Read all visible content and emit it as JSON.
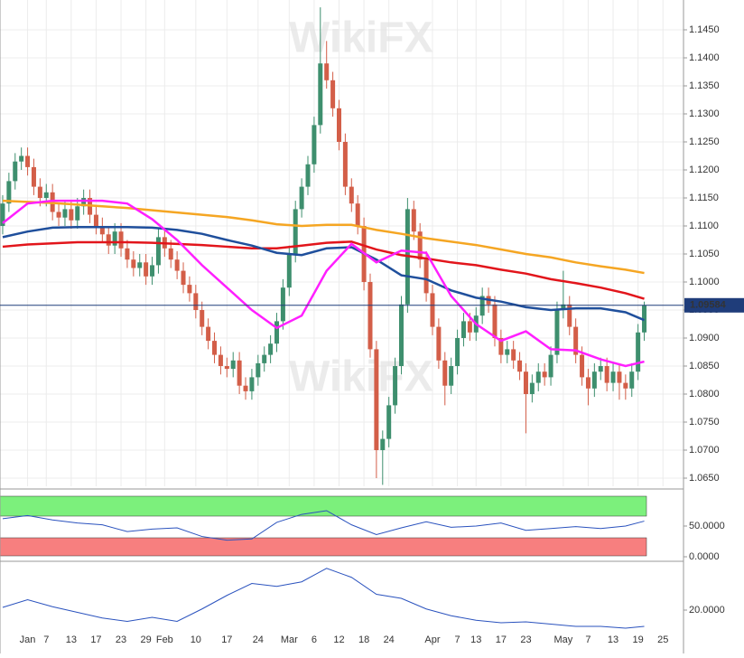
{
  "watermark": "WikiFX",
  "chart_data": [
    {
      "type": "candlestick",
      "grid": true,
      "up_color": "#3e8f6e",
      "down_color": "#d35e48",
      "xlim": [
        -0.43,
        109.3
      ],
      "ylim": [
        1.06355,
        1.15032
      ],
      "yticks": [
        {
          "value": 1.065,
          "label": "1.0650"
        },
        {
          "value": 1.07,
          "label": "1.0700"
        },
        {
          "value": 1.075,
          "label": "1.0750"
        },
        {
          "value": 1.08,
          "label": "1.0800"
        },
        {
          "value": 1.085,
          "label": "1.0850"
        },
        {
          "value": 1.09,
          "label": "1.0900"
        },
        {
          "value": 1.095,
          "label": "1.0950"
        },
        {
          "value": 1.1,
          "label": "1.1000"
        },
        {
          "value": 1.105,
          "label": "1.1050"
        },
        {
          "value": 1.11,
          "label": "1.1100"
        },
        {
          "value": 1.115,
          "label": "1.1150"
        },
        {
          "value": 1.12,
          "label": "1.1200"
        },
        {
          "value": 1.125,
          "label": "1.1250"
        },
        {
          "value": 1.13,
          "label": "1.1300"
        },
        {
          "value": 1.135,
          "label": "1.1350"
        },
        {
          "value": 1.14,
          "label": "1.1400"
        },
        {
          "value": 1.145,
          "label": "1.1450"
        }
      ],
      "last_price": {
        "value": 1.09584,
        "label": "1.09584"
      },
      "open": [
        1.11,
        1.114,
        1.118,
        1.1215,
        1.1225,
        1.1205,
        1.117,
        1.115,
        1.116,
        1.1125,
        1.1115,
        1.113,
        1.111,
        1.1135,
        1.115,
        1.112,
        1.11,
        1.1085,
        1.1065,
        1.109,
        1.106,
        1.104,
        1.1025,
        1.1035,
        1.101,
        1.103,
        1.108,
        1.106,
        1.104,
        1.102,
        1.0995,
        1.098,
        1.095,
        1.092,
        1.0895,
        1.087,
        1.085,
        1.0845,
        1.086,
        1.0815,
        1.0805,
        1.083,
        1.0855,
        1.087,
        1.089,
        1.093,
        1.099,
        1.105,
        1.113,
        1.117,
        1.121,
        1.128,
        1.139,
        1.136,
        1.131,
        1.125,
        1.117,
        1.114,
        1.11,
        1.1,
        1.088,
        1.07,
        1.072,
        1.078,
        1.085,
        1.096,
        1.113,
        1.109,
        1.104,
        1.098,
        1.092,
        1.086,
        1.0815,
        1.085,
        1.09,
        1.093,
        1.091,
        1.094,
        1.0975,
        1.096,
        1.09,
        1.087,
        1.088,
        1.086,
        1.084,
        1.08,
        1.082,
        1.084,
        1.083,
        1.087,
        1.095,
        1.096,
        1.092,
        1.087,
        1.083,
        1.081,
        1.084,
        1.085,
        1.082,
        1.084,
        1.082,
        1.081,
        1.084,
        1.091
      ],
      "high": [
        1.1155,
        1.1195,
        1.123,
        1.124,
        1.124,
        1.122,
        1.1185,
        1.1175,
        1.1175,
        1.114,
        1.1145,
        1.1145,
        1.115,
        1.1165,
        1.1165,
        1.1135,
        1.1115,
        1.11,
        1.1105,
        1.1105,
        1.1075,
        1.1055,
        1.105,
        1.105,
        1.1045,
        1.1095,
        1.1095,
        1.1075,
        1.1055,
        1.1035,
        1.101,
        1.0995,
        1.0965,
        1.0935,
        1.091,
        1.0885,
        1.0865,
        1.0875,
        1.0875,
        1.083,
        1.0845,
        1.087,
        1.0885,
        1.0905,
        1.0945,
        1.1005,
        1.1065,
        1.1145,
        1.1185,
        1.1225,
        1.1295,
        1.149,
        1.143,
        1.1375,
        1.1325,
        1.1265,
        1.1185,
        1.1155,
        1.1115,
        1.1015,
        1.0895,
        1.0735,
        1.0795,
        1.0865,
        1.0975,
        1.115,
        1.1145,
        1.1105,
        1.1055,
        1.0995,
        1.0935,
        1.0875,
        1.0865,
        1.0915,
        1.0945,
        1.0945,
        1.0955,
        1.099,
        1.099,
        1.0975,
        1.0915,
        1.0895,
        1.0895,
        1.0875,
        1.0855,
        1.0835,
        1.0855,
        1.0855,
        1.0885,
        1.0965,
        1.102,
        1.0975,
        1.0935,
        1.0885,
        1.0845,
        1.0855,
        1.0865,
        1.0865,
        1.0855,
        1.0855,
        1.0835,
        1.0855,
        1.0925,
        1.0965
      ],
      "low": [
        1.1085,
        1.1125,
        1.1165,
        1.12,
        1.119,
        1.1155,
        1.1135,
        1.1135,
        1.111,
        1.11,
        1.11,
        1.1095,
        1.1095,
        1.112,
        1.1105,
        1.1085,
        1.107,
        1.105,
        1.105,
        1.1045,
        1.1025,
        1.101,
        1.101,
        1.0995,
        1.0995,
        1.1015,
        1.1045,
        1.1025,
        1.1005,
        1.098,
        1.0965,
        1.0935,
        1.0905,
        1.088,
        1.0855,
        1.0835,
        1.083,
        1.083,
        1.08,
        1.079,
        1.079,
        1.0815,
        1.084,
        1.0855,
        1.0875,
        1.0915,
        1.0975,
        1.1035,
        1.1115,
        1.1155,
        1.1195,
        1.1265,
        1.1345,
        1.1295,
        1.1235,
        1.1155,
        1.1125,
        1.1085,
        1.0985,
        1.0865,
        1.065,
        1.0638,
        1.0705,
        1.0765,
        1.0835,
        1.0945,
        1.1075,
        1.1025,
        1.0965,
        1.0905,
        1.0845,
        1.078,
        1.08,
        1.0835,
        1.0885,
        1.0895,
        1.0895,
        1.0925,
        1.0945,
        1.0885,
        1.0855,
        1.0855,
        1.0845,
        1.0825,
        1.073,
        1.0785,
        1.0805,
        1.0815,
        1.0815,
        1.0855,
        1.0935,
        1.0905,
        1.0855,
        1.0815,
        1.078,
        1.0795,
        1.0825,
        1.0805,
        1.0805,
        1.079,
        1.079,
        1.0795,
        1.0825,
        1.0895
      ],
      "close": [
        1.114,
        1.118,
        1.1215,
        1.1225,
        1.1205,
        1.117,
        1.115,
        1.116,
        1.1125,
        1.1115,
        1.113,
        1.111,
        1.1135,
        1.115,
        1.112,
        1.11,
        1.1085,
        1.1065,
        1.109,
        1.106,
        1.104,
        1.1025,
        1.1035,
        1.101,
        1.103,
        1.108,
        1.106,
        1.104,
        1.102,
        1.0995,
        1.098,
        1.095,
        1.092,
        1.0895,
        1.087,
        1.085,
        1.0845,
        1.086,
        1.0815,
        1.0805,
        1.083,
        1.0855,
        1.087,
        1.089,
        1.093,
        1.099,
        1.105,
        1.113,
        1.117,
        1.121,
        1.128,
        1.139,
        1.136,
        1.131,
        1.125,
        1.117,
        1.114,
        1.11,
        1.1,
        1.088,
        1.07,
        1.072,
        1.078,
        1.085,
        1.096,
        1.113,
        1.109,
        1.104,
        1.098,
        1.092,
        1.086,
        1.0815,
        1.085,
        1.09,
        1.093,
        1.091,
        1.094,
        1.0975,
        1.096,
        1.09,
        1.087,
        1.088,
        1.086,
        1.084,
        1.08,
        1.082,
        1.084,
        1.083,
        1.087,
        1.095,
        1.096,
        1.092,
        1.087,
        1.083,
        1.081,
        1.084,
        1.085,
        1.082,
        1.084,
        1.082,
        1.081,
        1.084,
        1.091,
        1.0958
      ],
      "series": [
        {
          "color": "#f5a623",
          "x": [
            0,
            4,
            8,
            12,
            16,
            20,
            24,
            28,
            32,
            36,
            40,
            44,
            48,
            52,
            56,
            60,
            64,
            68,
            72,
            76,
            80,
            84,
            88,
            92,
            96,
            100,
            103
          ],
          "values": [
            1.1145,
            1.1143,
            1.1141,
            1.1138,
            1.1135,
            1.1132,
            1.1128,
            1.1124,
            1.112,
            1.1116,
            1.111,
            1.1103,
            1.11,
            1.1102,
            1.1102,
            1.1093,
            1.1086,
            1.1078,
            1.1072,
            1.1066,
            1.1058,
            1.105,
            1.1044,
            1.1035,
            1.1028,
            1.1022,
            1.1016
          ]
        },
        {
          "color": "#e2151b",
          "x": [
            0,
            4,
            8,
            12,
            16,
            20,
            24,
            28,
            32,
            36,
            40,
            44,
            48,
            52,
            56,
            60,
            64,
            68,
            72,
            76,
            80,
            84,
            88,
            92,
            96,
            100,
            103
          ],
          "values": [
            1.1063,
            1.1067,
            1.1069,
            1.1071,
            1.1071,
            1.1071,
            1.107,
            1.1068,
            1.1066,
            1.1063,
            1.106,
            1.106,
            1.1065,
            1.107,
            1.1072,
            1.1058,
            1.1048,
            1.1042,
            1.1035,
            1.103,
            1.1022,
            1.1015,
            1.1005,
            1.0998,
            1.099,
            1.098,
            1.097
          ]
        },
        {
          "color": "#1f4f9c",
          "x": [
            0,
            4,
            8,
            12,
            16,
            20,
            24,
            28,
            32,
            36,
            40,
            44,
            48,
            52,
            56,
            60,
            64,
            68,
            72,
            76,
            80,
            84,
            88,
            92,
            96,
            100,
            103
          ],
          "values": [
            1.108,
            1.109,
            1.1097,
            1.1098,
            1.1098,
            1.1098,
            1.1097,
            1.1093,
            1.1086,
            1.1075,
            1.1065,
            1.1052,
            1.1048,
            1.106,
            1.1062,
            1.104,
            1.1012,
            1.1005,
            1.0985,
            1.0972,
            1.0965,
            1.0955,
            1.095,
            1.0953,
            1.0953,
            1.0946,
            1.0932
          ]
        },
        {
          "color": "#ff1fff",
          "x": [
            0,
            4,
            8,
            12,
            16,
            20,
            24,
            28,
            32,
            36,
            40,
            44,
            48,
            52,
            56,
            60,
            64,
            68,
            72,
            76,
            80,
            84,
            88,
            92,
            96,
            100,
            103
          ],
          "values": [
            1.1105,
            1.114,
            1.1145,
            1.1145,
            1.1145,
            1.114,
            1.1112,
            1.1075,
            1.103,
            1.099,
            1.095,
            1.0918,
            1.094,
            1.102,
            1.1068,
            1.1035,
            1.1056,
            1.1052,
            1.0975,
            1.0925,
            1.0895,
            1.0912,
            1.088,
            1.0878,
            1.0862,
            1.085,
            1.0858
          ]
        }
      ]
    },
    {
      "type": "line",
      "xlim": [
        -0.43,
        109.3
      ],
      "ylim": [
        -4.4,
        104.4
      ],
      "yticks": [
        {
          "value": 50,
          "label": "50.0000"
        },
        {
          "value": 0,
          "label": "0.0000"
        }
      ],
      "series": [
        {
          "color": "#2a52be",
          "x": [
            0,
            4,
            8,
            12,
            16,
            20,
            24,
            28,
            32,
            36,
            40,
            44,
            48,
            52,
            56,
            60,
            64,
            68,
            72,
            76,
            80,
            84,
            88,
            92,
            96,
            100,
            103
          ],
          "values": [
            62,
            67,
            60,
            55,
            52,
            41,
            45,
            47,
            33,
            27,
            29,
            56,
            69,
            75,
            52,
            36,
            47,
            57,
            48,
            50,
            55,
            43,
            46,
            49,
            46,
            50,
            58
          ]
        }
      ]
    },
    {
      "type": "line",
      "xlim": [
        -0.43,
        109.3
      ],
      "ylim": [
        0.8,
        40
      ],
      "yticks": [
        {
          "value": 20,
          "label": "20.0000"
        }
      ],
      "xticks": [
        {
          "value": 4,
          "label": "Jan"
        },
        7,
        11,
        15,
        19,
        23,
        {
          "value": 26,
          "label": "Feb"
        },
        31,
        36,
        41,
        {
          "value": 46,
          "label": "Mar"
        },
        50,
        54,
        58,
        62,
        {
          "value": 69,
          "label": "Apr"
        },
        73,
        76,
        80,
        84,
        {
          "value": 90,
          "label": "May"
        },
        94,
        98,
        102,
        106
      ],
      "xtick_labels": [
        "Jan",
        "7",
        "13",
        "17",
        "23",
        "29",
        "Feb",
        "10",
        "17",
        "24",
        "Mar",
        "6",
        "12",
        "18",
        "24",
        "Apr",
        "7",
        "13",
        "17",
        "23",
        "May",
        "7",
        "13",
        "19",
        "25"
      ],
      "series": [
        {
          "color": "#2a52be",
          "x": [
            0,
            4,
            8,
            12,
            16,
            20,
            24,
            28,
            32,
            36,
            40,
            44,
            48,
            52,
            56,
            60,
            64,
            68,
            72,
            76,
            80,
            84,
            88,
            92,
            96,
            100,
            103
          ],
          "values": [
            21.2,
            24.6,
            21.5,
            19.0,
            16.5,
            15.0,
            16.8,
            15.0,
            20.5,
            26.5,
            31.8,
            30.5,
            32.5,
            38.5,
            34.5,
            27.0,
            25.2,
            20.5,
            17.5,
            15.5,
            14.4,
            14.8,
            13.8,
            12.8,
            12.8,
            12.0,
            12.8
          ]
        }
      ]
    }
  ]
}
